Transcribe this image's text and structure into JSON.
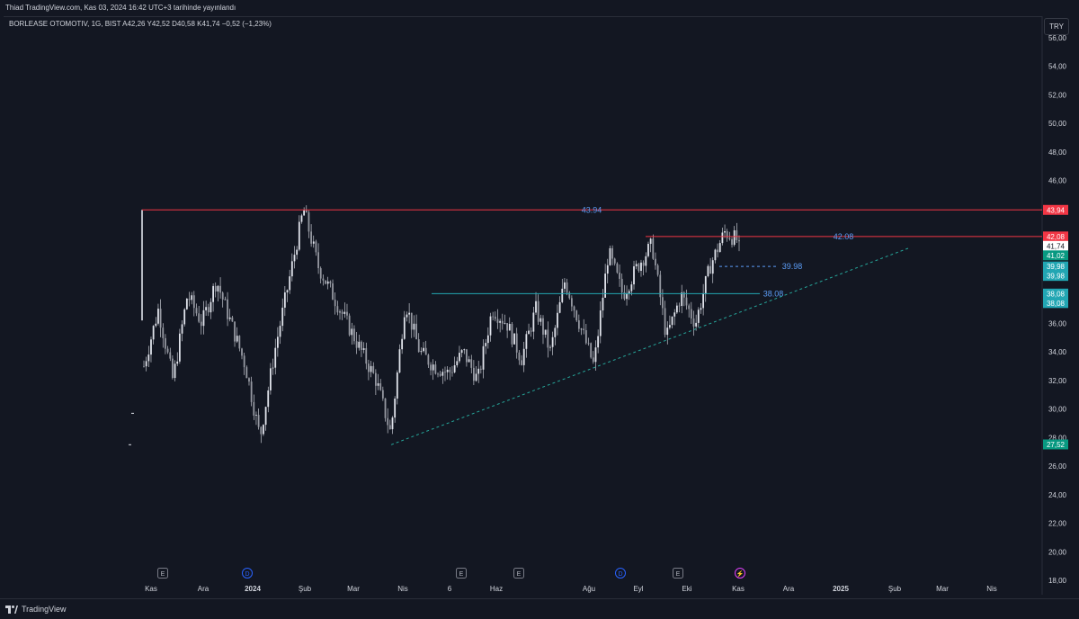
{
  "header": {
    "published": "Thiad TradingView.com, Kas 03, 2024 16:42 UTC+3 tarihinde yayınlandı"
  },
  "legend": "BORLEASE OTOMOTIV, 1G, BIST  A42,26  Y42,52  D40,58  K41,74  −0,52 (−1,23%)",
  "currency_button": "TRY",
  "brand": "TradingView",
  "colors": {
    "background": "#131722",
    "candle": "#e0e3eb",
    "resistance": "#f23645",
    "support": "#22a6b3",
    "trendline": "#26a69a",
    "label_blue": "#5b9cf6"
  },
  "chart_data": {
    "type": "candlestick",
    "symbol": "BORLEASE OTOMOTIV",
    "interval": "1G",
    "exchange": "BIST",
    "ylim": [
      17,
      57.5
    ],
    "y_ticks": [
      "56,00",
      "54,00",
      "52,00",
      "50,00",
      "48,00",
      "46,00",
      "44,00",
      "42,00",
      "40,00",
      "38,00",
      "36,00",
      "34,00",
      "32,00",
      "30,00",
      "28,00",
      "26,00",
      "24,00",
      "22,00",
      "20,00",
      "18,00"
    ],
    "x_ticks": [
      "Kas",
      "Ara",
      "2024",
      "Şub",
      "Mar",
      "Nis",
      "6",
      "Haz",
      "Ağu",
      "Eyl",
      "Eki",
      "Kas",
      "Ara",
      "2025",
      "Şub",
      "Mar",
      "Nis"
    ],
    "event_markers": [
      "E",
      "D",
      "E",
      "E",
      "D",
      "E",
      "⚡"
    ],
    "price_path_closes": [
      33,
      37,
      32,
      38,
      36,
      39,
      36,
      33,
      28,
      34,
      39,
      44,
      40,
      38,
      36,
      34,
      32,
      28.3,
      37.5,
      34,
      33,
      32.5,
      34,
      32,
      37,
      36,
      33.5,
      37,
      34,
      39,
      36,
      33,
      41,
      38,
      40,
      41.5,
      35,
      38,
      36,
      40,
      42.4,
      41.74
    ],
    "annotations": [
      {
        "label": "43.94",
        "value": 43.94
      },
      {
        "label": "42.08",
        "value": 42.08
      },
      {
        "label": "39.98",
        "value": 39.98
      },
      {
        "label": "38.08",
        "value": 38.08
      }
    ],
    "axis_labels": [
      {
        "text": "43,94",
        "value": 43.94,
        "color": "#f23645"
      },
      {
        "text": "42,08",
        "value": 42.08,
        "color": "#f23645"
      },
      {
        "text": "41,74",
        "value": 41.74,
        "color": "#ffffff"
      },
      {
        "text": "41,02",
        "value": 41.02,
        "color": "#089981"
      },
      {
        "text": "39,98",
        "value": 39.98,
        "color": "#22a6b3"
      },
      {
        "text": "39,98",
        "value": 39.98,
        "color": "#22a6b3"
      },
      {
        "text": "38,08",
        "value": 38.08,
        "color": "#22a6b3"
      },
      {
        "text": "38,08",
        "value": 38.08,
        "color": "#22a6b3"
      },
      {
        "text": "27,52",
        "value": 27.52,
        "color": "#089981"
      }
    ]
  }
}
